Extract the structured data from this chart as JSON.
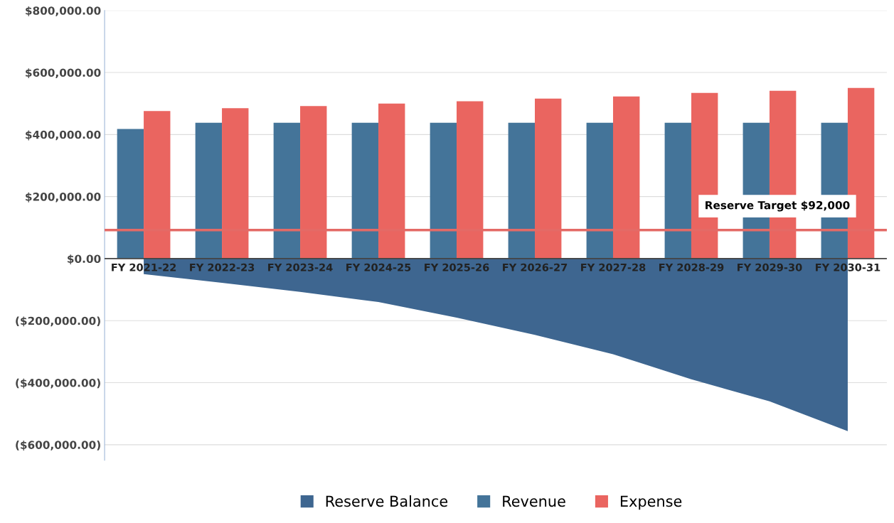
{
  "chart_data": {
    "type": "bar",
    "categories": [
      "FY 2021-22",
      "FY 2022-23",
      "FY 2023-24",
      "FY 2024-25",
      "FY 2025-26",
      "FY 2026-27",
      "FY 2027-28",
      "FY 2028-29",
      "FY 2029-30",
      "FY 2030-31"
    ],
    "series": [
      {
        "name": "Reserve Balance",
        "type": "area",
        "color": "#3e6690",
        "values": [
          -50000,
          -78000,
          -107000,
          -140000,
          -190000,
          -246000,
          -308000,
          -389000,
          -460000,
          -556000
        ]
      },
      {
        "name": "Revenue",
        "color": "#447499",
        "values": [
          418000,
          438000,
          438000,
          438000,
          438000,
          438000,
          438000,
          438000,
          438000,
          438000
        ]
      },
      {
        "name": "Expense",
        "color": "#ea6560",
        "values": [
          476000,
          485000,
          492000,
          500000,
          507000,
          516000,
          523000,
          534000,
          541000,
          550000
        ]
      }
    ],
    "ylim": [
      -650000,
      800000
    ],
    "yticks": [
      {
        "value": -600000,
        "label": "($600,000.00)"
      },
      {
        "value": -400000,
        "label": "($400,000.00)"
      },
      {
        "value": -200000,
        "label": "($200,000.00)"
      },
      {
        "value": 0,
        "label": "$0.00"
      },
      {
        "value": 200000,
        "label": "$200,000.00"
      },
      {
        "value": 400000,
        "label": "$400,000.00"
      },
      {
        "value": 600000,
        "label": "$600,000.00"
      },
      {
        "value": 800000,
        "label": "$800,000.00"
      }
    ],
    "ref_lines": [
      {
        "axis": "y",
        "value": 92000,
        "label": "Reserve Target $92,000",
        "color": "#e46a66"
      }
    ],
    "grid": "y",
    "legend": "bottom"
  }
}
